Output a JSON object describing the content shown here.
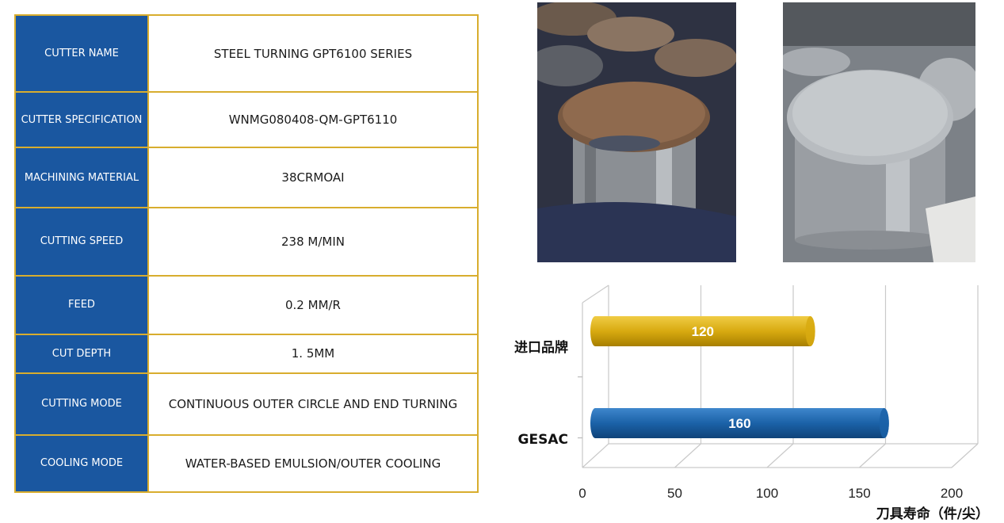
{
  "spec_table": {
    "rows": [
      {
        "label": "CUTTER NAME",
        "value": "STEEL TURNING GPT6100 SERIES"
      },
      {
        "label": "CUTTER SPECIFICATION",
        "value": "WNMG080408-QM-GPT6110"
      },
      {
        "label": "MACHINING MATERIAL",
        "value": "38CRMOAI"
      },
      {
        "label": "CUTTING SPEED",
        "value": "238 M/MIN"
      },
      {
        "label": "FEED",
        "value": "0.2 MM/R"
      },
      {
        "label": "CUT DEPTH",
        "value": "1. 5MM"
      },
      {
        "label": "CUTTING MODE",
        "value": "CONTINUOUS OUTER CIRCLE AND END TURNING"
      },
      {
        "label": "COOLING MODE",
        "value": "WATER-BASED EMULSION/OUTER COOLING"
      }
    ]
  },
  "photos": {
    "left": {
      "subject": "rusty steel workpiece, competitor insert"
    },
    "right": {
      "subject": "turned steel workpiece, GESAC insert"
    }
  },
  "chart_data": {
    "type": "bar",
    "orientation": "horizontal",
    "categories": [
      "进口品牌",
      "GESAC"
    ],
    "values": [
      120,
      160
    ],
    "data_labels": [
      "120",
      "160"
    ],
    "colors": [
      "#d8aa10",
      "#1b62a8"
    ],
    "xlabel": "刀具寿命（件/尖）",
    "xlim": [
      0,
      200
    ],
    "xticks": [
      "0",
      "50",
      "100",
      "150",
      "200"
    ],
    "grid": true
  },
  "colors": {
    "table_header": "#1a57a0",
    "table_border": "#d8ad2e",
    "text": "#1b1b1b"
  }
}
